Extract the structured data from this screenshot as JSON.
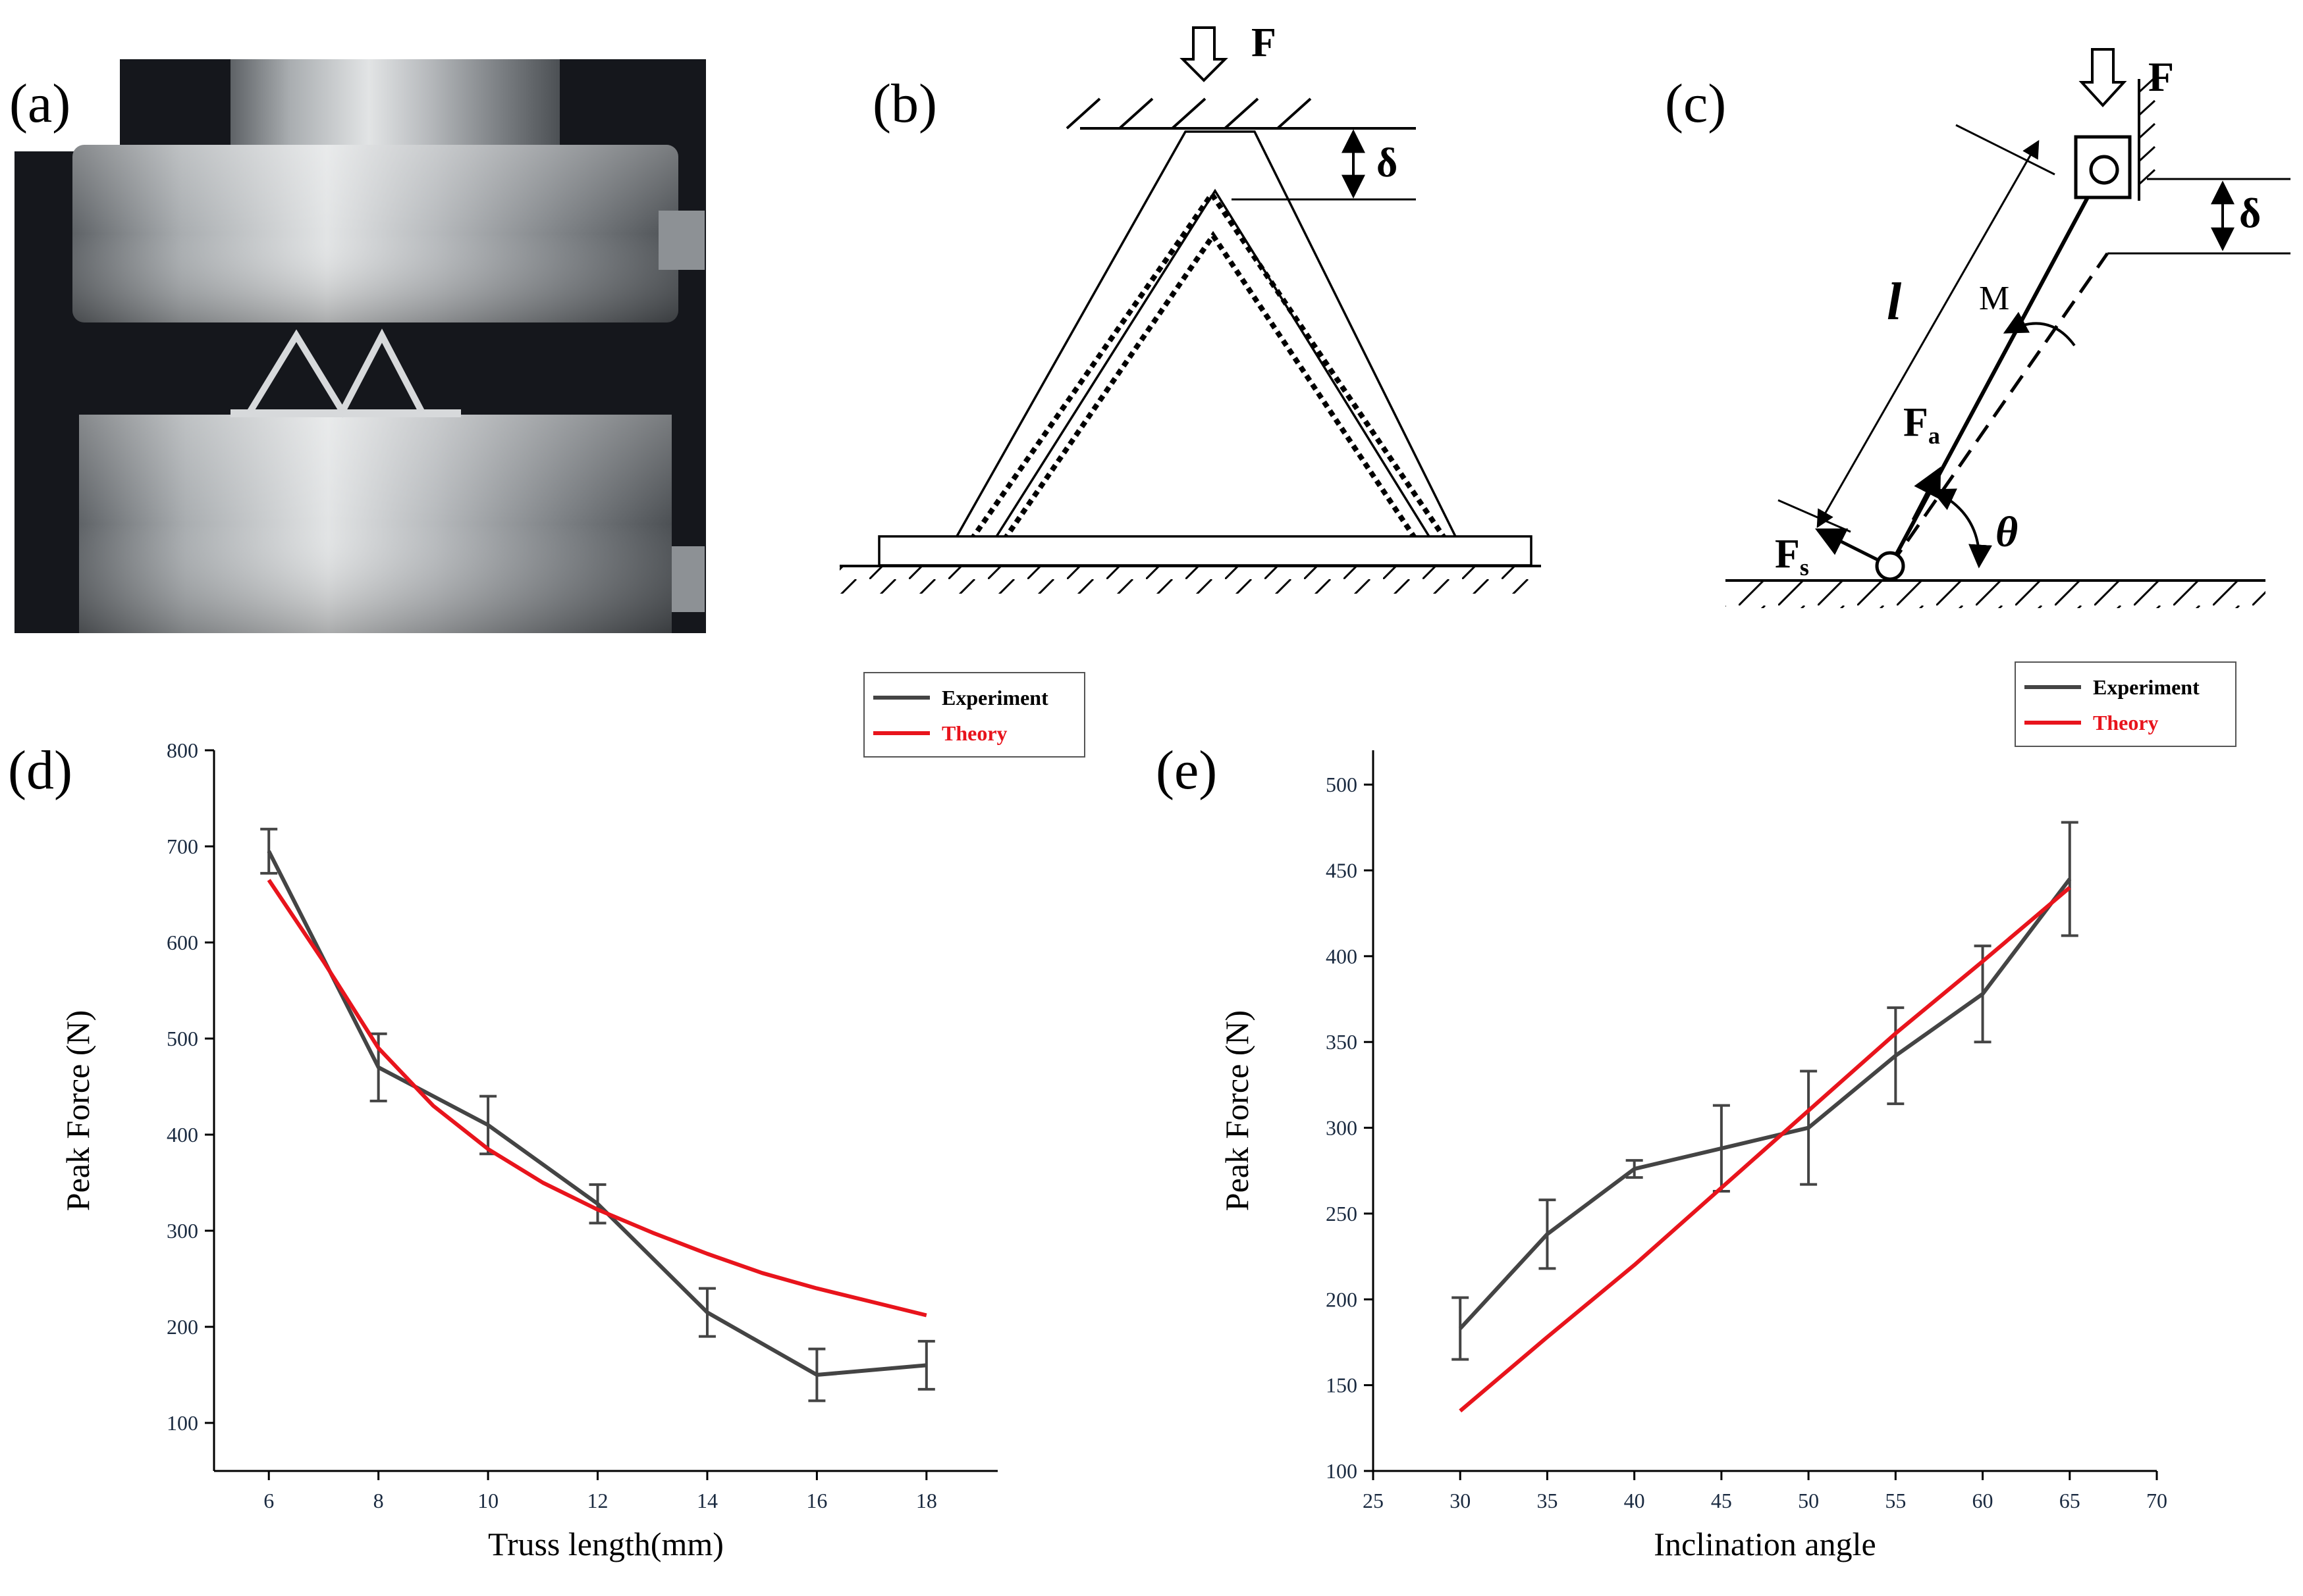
{
  "panels": {
    "a": "(a)",
    "b": "(b)",
    "c": "(c)",
    "d": "(d)",
    "e": "(e)"
  },
  "diagram_b": {
    "force": "F",
    "delta": "δ"
  },
  "diagram_c": {
    "force": "F",
    "delta": "δ",
    "length": "l",
    "moment": "M",
    "axial": "F",
    "axial_sub": "a",
    "shear": "F",
    "shear_sub": "s",
    "angle": "θ"
  },
  "colors": {
    "experiment": "#444444",
    "theory": "#e8141c"
  },
  "chart_data": [
    {
      "type": "line",
      "xlabel": "Truss length(mm)",
      "ylabel": "Peak Force (N)",
      "xlim": [
        5,
        19.3
      ],
      "ylim": [
        50,
        800
      ],
      "xticks": [
        6,
        8,
        10,
        12,
        14,
        16,
        18
      ],
      "yticks": [
        100,
        200,
        300,
        400,
        500,
        600,
        700,
        800
      ],
      "legend_position": "top-right (above plot)",
      "series": [
        {
          "name": "Experiment",
          "x": [
            6,
            8,
            10,
            12,
            14,
            16,
            18
          ],
          "values": [
            695,
            470,
            410,
            328,
            215,
            150,
            160
          ],
          "error": [
            23,
            35,
            30,
            20,
            25,
            27,
            25
          ]
        },
        {
          "name": "Theory",
          "x": [
            6,
            7,
            8,
            9,
            10,
            11,
            12,
            13,
            14,
            15,
            16,
            17,
            18
          ],
          "values": [
            665,
            580,
            490,
            430,
            385,
            350,
            322,
            298,
            276,
            256,
            240,
            226,
            212
          ]
        }
      ]
    },
    {
      "type": "line",
      "xlabel": "Inclination angle",
      "ylabel": "Peak Force (N)",
      "xlim": [
        25,
        70
      ],
      "ylim": [
        100,
        520
      ],
      "xticks": [
        25,
        30,
        35,
        40,
        45,
        50,
        55,
        60,
        65,
        70
      ],
      "yticks": [
        100,
        150,
        200,
        250,
        300,
        350,
        400,
        450,
        500
      ],
      "legend_position": "top-right (above plot)",
      "series": [
        {
          "name": "Experiment",
          "x": [
            30,
            35,
            40,
            45,
            50,
            55,
            60,
            65
          ],
          "values": [
            183,
            238,
            276,
            288,
            300,
            342,
            378,
            445
          ],
          "error": [
            18,
            20,
            5,
            25,
            33,
            28,
            28,
            33
          ]
        },
        {
          "name": "Theory",
          "x": [
            30,
            35,
            40,
            45,
            50,
            55,
            60,
            65
          ],
          "values": [
            135,
            178,
            220,
            265,
            310,
            355,
            397,
            440
          ]
        }
      ]
    }
  ]
}
